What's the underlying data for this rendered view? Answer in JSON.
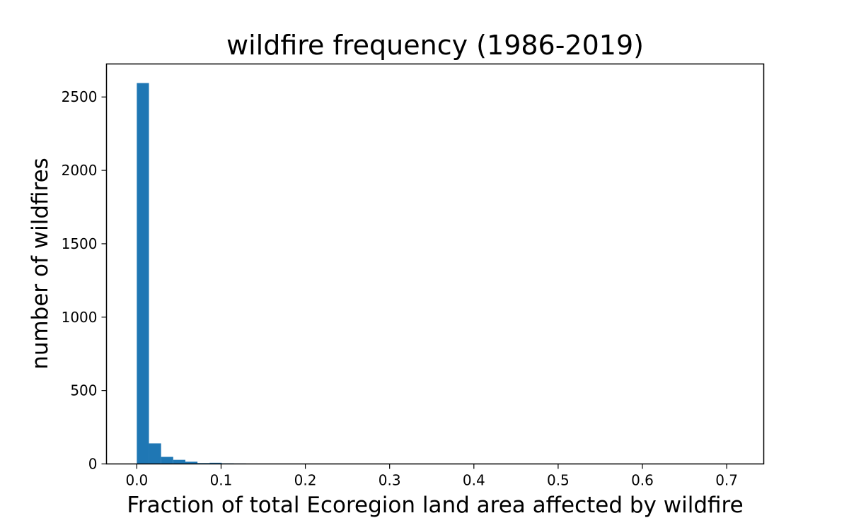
{
  "chart_data": {
    "type": "bar",
    "title": "wildfire frequency (1986-2019)",
    "xlabel": "Fraction of total Ecoregion land area affected by wildfire",
    "ylabel": "number of wildfires",
    "xlim": [
      -0.036,
      0.744
    ],
    "ylim": [
      0,
      2725
    ],
    "xticks": [
      0.0,
      0.1,
      0.2,
      0.3,
      0.4,
      0.5,
      0.6,
      0.7
    ],
    "xtick_labels": [
      "0.0",
      "0.1",
      "0.2",
      "0.3",
      "0.4",
      "0.5",
      "0.6",
      "0.7"
    ],
    "yticks": [
      0,
      500,
      1000,
      1500,
      2000,
      2500
    ],
    "ytick_labels": [
      "0",
      "500",
      "1000",
      "1500",
      "2000",
      "2500"
    ],
    "grid": false,
    "color": "#1f77b4",
    "bin_width": 0.0144,
    "bin_starts": [
      0.0,
      0.0144,
      0.0288,
      0.0432,
      0.0576,
      0.072,
      0.0864,
      0.1008,
      0.1152,
      0.1296,
      0.144,
      0.1584,
      0.1728
    ],
    "values": [
      2595,
      140,
      48,
      28,
      15,
      6,
      8,
      4,
      3,
      2,
      2,
      1,
      1
    ]
  }
}
